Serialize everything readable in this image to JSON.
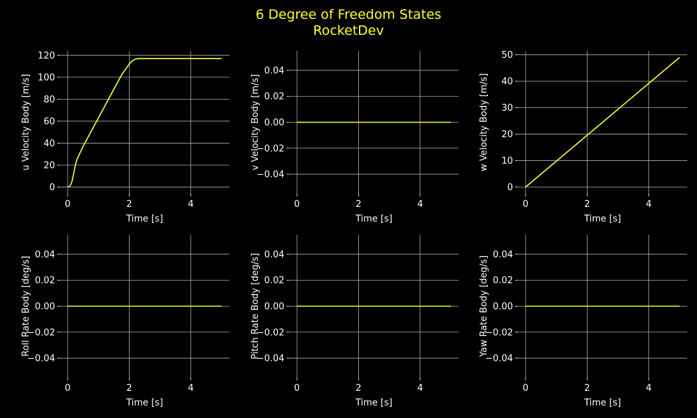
{
  "figure": {
    "title_line1": "6 Degree of Freedom States",
    "title_line2": "RocketDev"
  },
  "colors": {
    "background": "#000000",
    "line": "#ffff33",
    "grid": "#b0b0b0",
    "text": "#ffffff",
    "title": "#ffff33"
  },
  "chart_data": [
    {
      "type": "line",
      "xlabel": "Time [s]",
      "ylabel": "u Velocity Body [m/s]",
      "xlim": [
        -0.25,
        5.25
      ],
      "ylim": [
        -6,
        124
      ],
      "xticks": [
        0,
        2,
        4
      ],
      "yticks": [
        0,
        20,
        40,
        60,
        80,
        100,
        120
      ],
      "ytick_labels": [
        "0",
        "20",
        "40",
        "60",
        "80",
        "100",
        "120"
      ],
      "grid": true,
      "series": [
        {
          "x": [
            0,
            0.05,
            0.1,
            0.15,
            0.2,
            0.25,
            0.3,
            0.4,
            0.5,
            0.75,
            1.0,
            1.25,
            1.5,
            1.75,
            2.0,
            2.1,
            2.2,
            2.3,
            2.5,
            3.0,
            4.0,
            5.0
          ],
          "y": [
            0,
            0.5,
            2,
            6,
            13,
            20,
            25,
            31,
            37,
            50,
            63,
            76,
            89,
            102,
            112,
            115,
            116.5,
            117,
            117,
            117,
            117,
            117
          ]
        }
      ]
    },
    {
      "type": "line",
      "xlabel": "Time [s]",
      "ylabel": "v Velocity Body [m/s]",
      "xlim": [
        -0.25,
        5.25
      ],
      "ylim": [
        -0.055,
        0.055
      ],
      "xticks": [
        0,
        2,
        4
      ],
      "yticks": [
        -0.04,
        -0.02,
        0.0,
        0.02,
        0.04
      ],
      "ytick_labels": [
        "−0.04",
        "−0.02",
        "0.00",
        "0.02",
        "0.04"
      ],
      "grid": true,
      "series": [
        {
          "x": [
            0,
            5
          ],
          "y": [
            0,
            0
          ]
        }
      ]
    },
    {
      "type": "line",
      "xlabel": "Time [s]",
      "ylabel": "w Velocity Body [m/s]",
      "xlim": [
        -0.25,
        5.25
      ],
      "ylim": [
        -2.5,
        51.5
      ],
      "xticks": [
        0,
        2,
        4
      ],
      "yticks": [
        0,
        10,
        20,
        30,
        40,
        50
      ],
      "ytick_labels": [
        "0",
        "10",
        "20",
        "30",
        "40",
        "50"
      ],
      "grid": true,
      "series": [
        {
          "x": [
            0,
            5
          ],
          "y": [
            0,
            49
          ]
        }
      ]
    },
    {
      "type": "line",
      "xlabel": "Time [s]",
      "ylabel": "Roll Rate Body [deg/s]",
      "xlim": [
        -0.25,
        5.25
      ],
      "ylim": [
        -0.055,
        0.055
      ],
      "xticks": [
        0,
        2,
        4
      ],
      "yticks": [
        -0.04,
        -0.02,
        0.0,
        0.02,
        0.04
      ],
      "ytick_labels": [
        "−0.04",
        "−0.02",
        "0.00",
        "0.02",
        "0.04"
      ],
      "grid": true,
      "series": [
        {
          "x": [
            0,
            5
          ],
          "y": [
            0,
            0
          ]
        }
      ]
    },
    {
      "type": "line",
      "xlabel": "Time [s]",
      "ylabel": "Pitch Rate Body [deg/s]",
      "xlim": [
        -0.25,
        5.25
      ],
      "ylim": [
        -0.055,
        0.055
      ],
      "xticks": [
        0,
        2,
        4
      ],
      "yticks": [
        -0.04,
        -0.02,
        0.0,
        0.02,
        0.04
      ],
      "ytick_labels": [
        "−0.04",
        "−0.02",
        "0.00",
        "0.02",
        "0.04"
      ],
      "grid": true,
      "series": [
        {
          "x": [
            0,
            5
          ],
          "y": [
            0,
            0
          ]
        }
      ]
    },
    {
      "type": "line",
      "xlabel": "Time [s]",
      "ylabel": "Yaw Rate Body [deg/s]",
      "xlim": [
        -0.25,
        5.25
      ],
      "ylim": [
        -0.055,
        0.055
      ],
      "xticks": [
        0,
        2,
        4
      ],
      "yticks": [
        -0.04,
        -0.02,
        0.0,
        0.02,
        0.04
      ],
      "ytick_labels": [
        "−0.04",
        "−0.02",
        "0.00",
        "0.02",
        "0.04"
      ],
      "grid": true,
      "series": [
        {
          "x": [
            0,
            5
          ],
          "y": [
            0,
            0
          ]
        }
      ]
    }
  ]
}
